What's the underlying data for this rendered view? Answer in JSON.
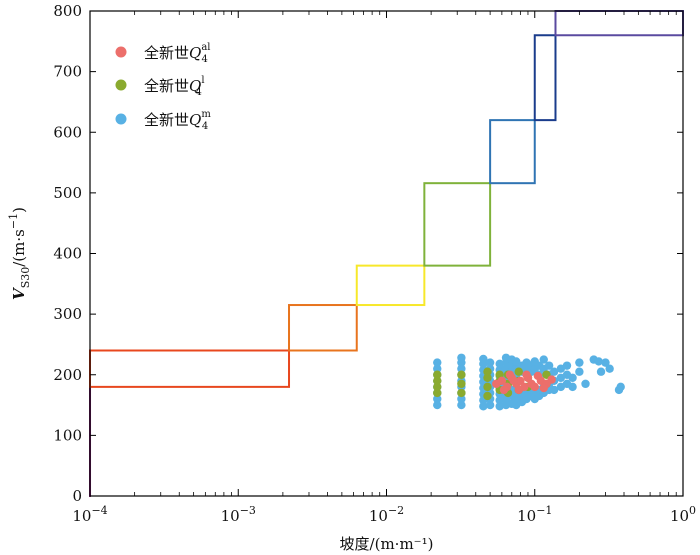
{
  "chart_data": {
    "type": "scatter",
    "xscale": "log",
    "xlim": [
      0.0001,
      1
    ],
    "ylim": [
      0,
      800
    ],
    "x_ticks": [
      {
        "value": 0.0001,
        "base": "10",
        "exp": "−4"
      },
      {
        "value": 0.001,
        "base": "10",
        "exp": "−3"
      },
      {
        "value": 0.01,
        "base": "10",
        "exp": "−2"
      },
      {
        "value": 0.1,
        "base": "10",
        "exp": "−1"
      },
      {
        "value": 1,
        "base": "10",
        "exp": "0"
      }
    ],
    "y_ticks": [
      "0",
      "100",
      "200",
      "300",
      "400",
      "500",
      "600",
      "700",
      "800"
    ],
    "xlabel": "坡度/(m·m⁻¹)",
    "ylabel": "V_S30/(m·s⁻¹)",
    "ylabel_parts": {
      "main": "V",
      "sub": "S30",
      "unit": "/(m·s",
      "sup": "−1",
      "close": ")"
    },
    "legend_position": "top-left",
    "grid": false,
    "series": [
      {
        "name": "全新世Q4al",
        "name_parts": {
          "prefix": "全新世",
          "q": "Q",
          "sup": "al",
          "sub": "4"
        },
        "color": "#ec6f6b",
        "points": [
          [
            0.055,
            185
          ],
          [
            0.06,
            190
          ],
          [
            0.065,
            180
          ],
          [
            0.07,
            195
          ],
          [
            0.075,
            185
          ],
          [
            0.08,
            190
          ],
          [
            0.085,
            180
          ],
          [
            0.09,
            195
          ],
          [
            0.095,
            185
          ],
          [
            0.11,
            190
          ],
          [
            0.12,
            185
          ],
          [
            0.068,
            200
          ],
          [
            0.078,
            175
          ],
          [
            0.088,
            200
          ],
          [
            0.1,
            180
          ],
          [
            0.062,
            175
          ],
          [
            0.072,
            190
          ],
          [
            0.115,
            178
          ],
          [
            0.13,
            192
          ],
          [
            0.105,
            198
          ]
        ]
      },
      {
        "name": "全新世Q4l",
        "name_parts": {
          "prefix": "全新世",
          "q": "Q",
          "sup": "l",
          "sub": "4"
        },
        "color": "#8aaa2f",
        "points": [
          [
            0.022,
            170
          ],
          [
            0.022,
            180
          ],
          [
            0.022,
            190
          ],
          [
            0.022,
            200
          ],
          [
            0.032,
            170
          ],
          [
            0.032,
            185
          ],
          [
            0.032,
            200
          ],
          [
            0.048,
            165
          ],
          [
            0.048,
            180
          ],
          [
            0.048,
            195
          ],
          [
            0.048,
            205
          ],
          [
            0.058,
            175
          ],
          [
            0.058,
            190
          ],
          [
            0.058,
            200
          ],
          [
            0.066,
            170
          ],
          [
            0.066,
            185
          ],
          [
            0.066,
            200
          ],
          [
            0.078,
            175
          ],
          [
            0.078,
            190
          ],
          [
            0.078,
            205
          ],
          [
            0.09,
            180
          ],
          [
            0.09,
            195
          ],
          [
            0.12,
            185
          ],
          [
            0.12,
            200
          ]
        ]
      },
      {
        "name": "全新世Q4m",
        "name_parts": {
          "prefix": "全新世",
          "q": "Q",
          "sup": "m",
          "sub": "4"
        },
        "color": "#58b1e4",
        "points": [
          [
            0.022,
            150
          ],
          [
            0.022,
            160
          ],
          [
            0.022,
            170
          ],
          [
            0.022,
            180
          ],
          [
            0.022,
            190
          ],
          [
            0.022,
            200
          ],
          [
            0.022,
            210
          ],
          [
            0.022,
            220
          ],
          [
            0.032,
            150
          ],
          [
            0.032,
            160
          ],
          [
            0.032,
            170
          ],
          [
            0.032,
            180
          ],
          [
            0.032,
            190
          ],
          [
            0.032,
            200
          ],
          [
            0.032,
            210
          ],
          [
            0.032,
            220
          ],
          [
            0.032,
            228
          ],
          [
            0.045,
            148
          ],
          [
            0.045,
            158
          ],
          [
            0.045,
            168
          ],
          [
            0.045,
            178
          ],
          [
            0.045,
            188
          ],
          [
            0.045,
            198
          ],
          [
            0.045,
            208
          ],
          [
            0.045,
            218
          ],
          [
            0.045,
            226
          ],
          [
            0.05,
            150
          ],
          [
            0.05,
            160
          ],
          [
            0.05,
            170
          ],
          [
            0.05,
            180
          ],
          [
            0.05,
            190
          ],
          [
            0.05,
            200
          ],
          [
            0.05,
            210
          ],
          [
            0.05,
            220
          ],
          [
            0.058,
            148
          ],
          [
            0.058,
            158
          ],
          [
            0.058,
            168
          ],
          [
            0.058,
            178
          ],
          [
            0.058,
            188
          ],
          [
            0.058,
            198
          ],
          [
            0.058,
            208
          ],
          [
            0.058,
            218
          ],
          [
            0.064,
            150
          ],
          [
            0.064,
            160
          ],
          [
            0.064,
            170
          ],
          [
            0.064,
            180
          ],
          [
            0.064,
            190
          ],
          [
            0.064,
            200
          ],
          [
            0.064,
            210
          ],
          [
            0.064,
            220
          ],
          [
            0.064,
            228
          ],
          [
            0.07,
            152
          ],
          [
            0.07,
            165
          ],
          [
            0.07,
            175
          ],
          [
            0.07,
            205
          ],
          [
            0.07,
            215
          ],
          [
            0.07,
            225
          ],
          [
            0.075,
            150
          ],
          [
            0.075,
            160
          ],
          [
            0.075,
            170
          ],
          [
            0.075,
            200
          ],
          [
            0.075,
            210
          ],
          [
            0.075,
            222
          ],
          [
            0.082,
            155
          ],
          [
            0.082,
            165
          ],
          [
            0.082,
            175
          ],
          [
            0.082,
            205
          ],
          [
            0.082,
            215
          ],
          [
            0.088,
            160
          ],
          [
            0.088,
            170
          ],
          [
            0.088,
            210
          ],
          [
            0.088,
            220
          ],
          [
            0.095,
            165
          ],
          [
            0.095,
            175
          ],
          [
            0.095,
            205
          ],
          [
            0.095,
            215
          ],
          [
            0.1,
            160
          ],
          [
            0.1,
            170
          ],
          [
            0.1,
            210
          ],
          [
            0.1,
            222
          ],
          [
            0.107,
            165
          ],
          [
            0.107,
            175
          ],
          [
            0.107,
            200
          ],
          [
            0.107,
            215
          ],
          [
            0.115,
            170
          ],
          [
            0.115,
            180
          ],
          [
            0.115,
            210
          ],
          [
            0.115,
            225
          ],
          [
            0.125,
            175
          ],
          [
            0.125,
            185
          ],
          [
            0.125,
            200
          ],
          [
            0.125,
            215
          ],
          [
            0.135,
            175
          ],
          [
            0.135,
            190
          ],
          [
            0.135,
            205
          ],
          [
            0.15,
            180
          ],
          [
            0.15,
            195
          ],
          [
            0.15,
            210
          ],
          [
            0.165,
            185
          ],
          [
            0.165,
            200
          ],
          [
            0.165,
            215
          ],
          [
            0.18,
            180
          ],
          [
            0.18,
            195
          ],
          [
            0.2,
            205
          ],
          [
            0.2,
            220
          ],
          [
            0.22,
            185
          ],
          [
            0.25,
            225
          ],
          [
            0.27,
            222
          ],
          [
            0.28,
            205
          ],
          [
            0.3,
            220
          ],
          [
            0.32,
            210
          ],
          [
            0.37,
            175
          ],
          [
            0.38,
            180
          ]
        ]
      }
    ],
    "boxes": [
      {
        "color": "#7d1f72",
        "x0": 0.0001,
        "x1": 0.0001,
        "y0": 0,
        "y1": 180
      },
      {
        "color": "#e8471e",
        "x0": 0.0001,
        "x1": 0.0022,
        "y0": 180,
        "y1": 240
      },
      {
        "color": "#e8741e",
        "x0": 0.0022,
        "x1": 0.0063,
        "y0": 240,
        "y1": 315
      },
      {
        "color": "#f7e82a",
        "x0": 0.0063,
        "x1": 0.018,
        "y0": 315,
        "y1": 380
      },
      {
        "color": "#7fb23a",
        "x0": 0.018,
        "x1": 0.05,
        "y0": 380,
        "y1": 516
      },
      {
        "color": "#2f74b3",
        "x0": 0.05,
        "x1": 0.1,
        "y0": 516,
        "y1": 620
      },
      {
        "color": "#1a3c8c",
        "x0": 0.1,
        "x1": 0.138,
        "y0": 620,
        "y1": 760
      },
      {
        "color": "#5a4aa0",
        "x0": 0.138,
        "x1": 1,
        "y0": 760,
        "y1": 800
      }
    ]
  }
}
